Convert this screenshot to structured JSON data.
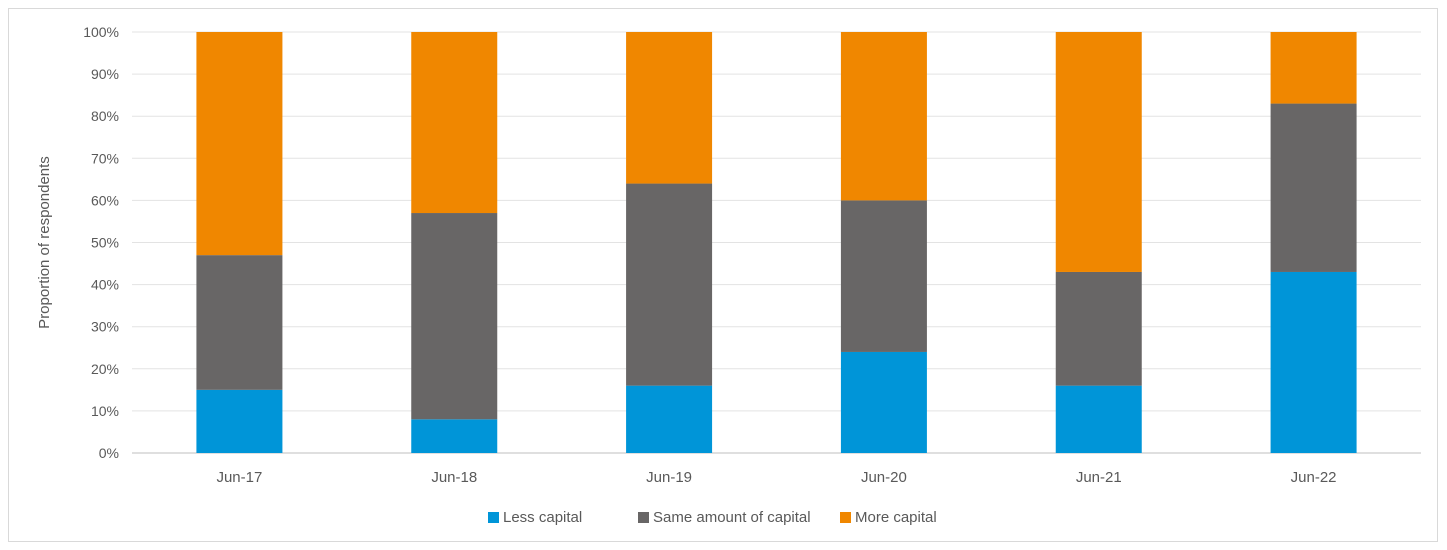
{
  "chart_data": {
    "type": "bar",
    "stacked": true,
    "percent": true,
    "categories": [
      "Jun-17",
      "Jun-18",
      "Jun-19",
      "Jun-20",
      "Jun-21",
      "Jun-22"
    ],
    "series": [
      {
        "name": "Less capital",
        "color": "#0095d8",
        "values": [
          15,
          8,
          16,
          24,
          16,
          43
        ]
      },
      {
        "name": "Same amount of capital",
        "color": "#686666",
        "values": [
          32,
          49,
          48,
          36,
          27,
          40
        ]
      },
      {
        "name": "More capital",
        "color": "#f08700",
        "values": [
          53,
          43,
          36,
          40,
          57,
          17
        ]
      }
    ],
    "title": "",
    "xlabel": "",
    "ylabel": "Proportion of respondents",
    "ylim": [
      0,
      100
    ],
    "yticks": [
      "0%",
      "10%",
      "20%",
      "30%",
      "40%",
      "50%",
      "60%",
      "70%",
      "80%",
      "90%",
      "100%"
    ],
    "grid": true,
    "legend_position": "bottom"
  }
}
